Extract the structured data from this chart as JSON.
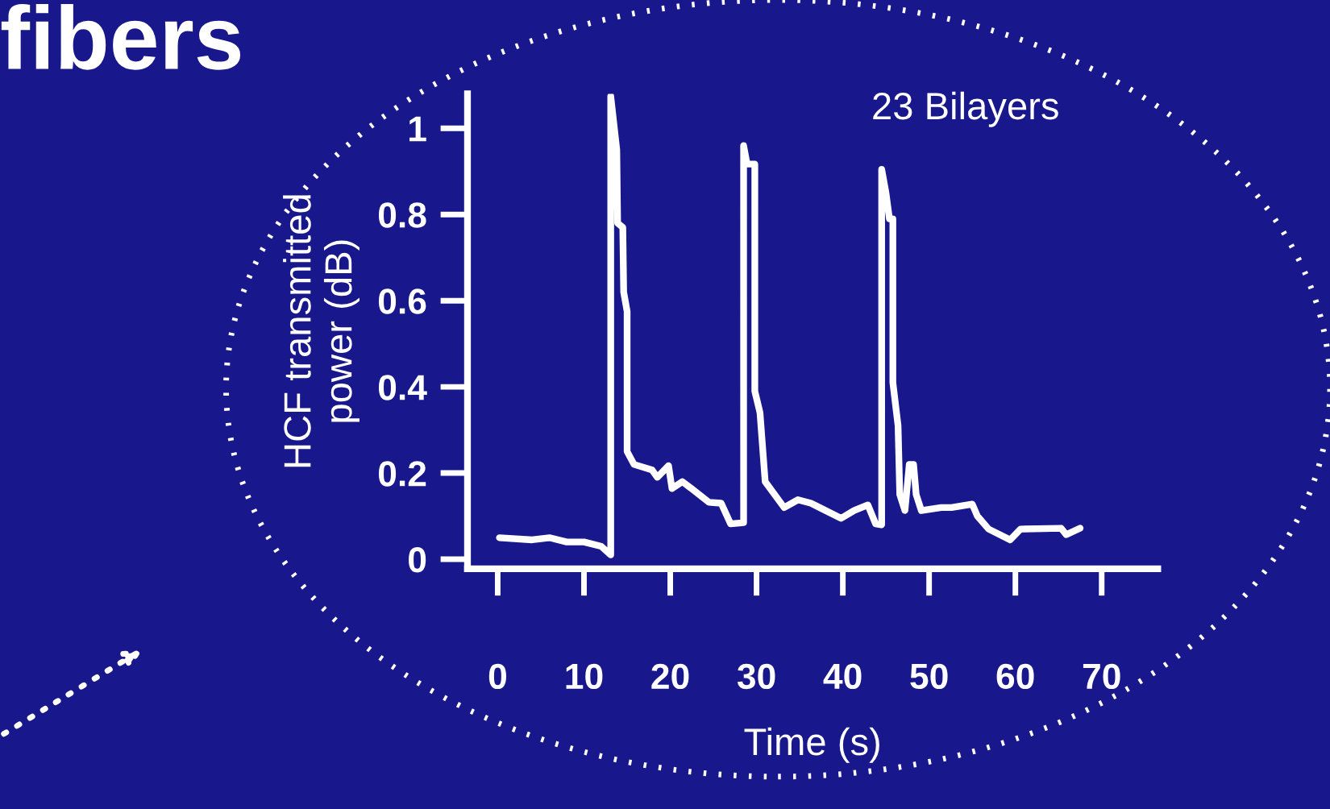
{
  "chart_data": {
    "type": "line",
    "xlabel": "Time (s)",
    "ylabel": "HCF transmitted\npower (dB)",
    "annotations": [
      "fibers",
      "23 Bilayers"
    ],
    "xlim": [
      -3.5,
      76.5
    ],
    "ylim": [
      -0.022,
      1.08
    ],
    "xticks": [
      0,
      10,
      20,
      30,
      40,
      50,
      60,
      70
    ],
    "yticks": [
      0,
      0.2,
      0.4,
      0.6,
      0.8,
      1
    ],
    "grid": false,
    "legend": false,
    "marker": "none",
    "line_style": "solid",
    "series": [
      {
        "color": "#ffffff",
        "x": [
          0.2,
          4,
          6,
          8,
          10,
          12,
          13.1,
          13.1,
          13.8,
          13.9,
          14.5,
          14.6,
          15.0,
          15.0,
          15.8,
          17.9,
          18.5,
          19.8,
          20.2,
          21.4,
          22.4,
          24.5,
          25.9,
          27.0,
          28.5,
          28.5,
          28.9,
          29.8,
          29.8,
          30.4,
          31.0,
          33.2,
          34.8,
          36.3,
          39.8,
          41.3,
          42.9,
          43.8,
          44.5,
          44.5,
          45.0,
          45.4,
          45.8,
          45.8,
          46.4,
          46.6,
          47.2,
          47.7,
          48.2,
          48.5,
          49.1,
          51.4,
          52.6,
          55.0,
          55.6,
          56.9,
          59.4,
          60.6,
          65.3,
          65.9,
          67.5
        ],
        "values": [
          0.05,
          0.045,
          0.05,
          0.04,
          0.04,
          0.03,
          0.01,
          1.075,
          0.95,
          0.78,
          0.77,
          0.62,
          0.575,
          0.25,
          0.22,
          0.207,
          0.19,
          0.217,
          0.164,
          0.18,
          0.165,
          0.132,
          0.13,
          0.082,
          0.085,
          0.96,
          0.917,
          0.917,
          0.39,
          0.34,
          0.18,
          0.12,
          0.138,
          0.13,
          0.095,
          0.113,
          0.126,
          0.082,
          0.08,
          0.905,
          0.85,
          0.79,
          0.79,
          0.41,
          0.31,
          0.15,
          0.113,
          0.22,
          0.22,
          0.15,
          0.113,
          0.12,
          0.12,
          0.128,
          0.1,
          0.07,
          0.045,
          0.07,
          0.072,
          0.057,
          0.072
        ]
      }
    ]
  }
}
